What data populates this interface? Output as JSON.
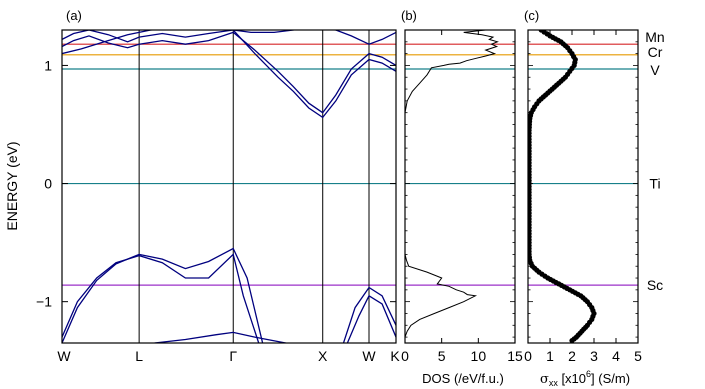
{
  "chart_data": [
    {
      "panel": "(a)",
      "type": "line",
      "ylabel": "ENERGY (eV)",
      "ylim": [
        -1.35,
        1.3
      ],
      "yticks": [
        -1,
        0,
        1
      ],
      "kpoints": [
        "W",
        "L",
        "Γ",
        "X",
        "W",
        "K"
      ],
      "kpositions": [
        0,
        1,
        2.22,
        3.38,
        3.98,
        4.33
      ],
      "series": [
        {
          "x": [
            0,
            0.15,
            0.35,
            0.6,
            0.85,
            1.0,
            1.3,
            1.6,
            1.9,
            2.22,
            2.5,
            2.8,
            3.0,
            3.2,
            3.38,
            3.55,
            3.75,
            3.98,
            4.15,
            4.33
          ],
          "y": [
            1.22,
            1.27,
            1.3,
            1.26,
            1.2,
            1.24,
            1.27,
            1.24,
            1.27,
            1.3,
            1.1,
            0.9,
            0.78,
            0.64,
            0.56,
            0.7,
            0.92,
            1.05,
            1.02,
            0.95
          ]
        },
        {
          "x": [
            0,
            0.15,
            0.35,
            0.6,
            0.85,
            1.0,
            1.3,
            1.6,
            1.9,
            2.22,
            2.5,
            2.8,
            3.0,
            3.2,
            3.38,
            3.55,
            3.75,
            3.98,
            4.15,
            4.33
          ],
          "y": [
            1.16,
            1.21,
            1.25,
            1.19,
            1.15,
            1.18,
            1.21,
            1.18,
            1.21,
            1.28,
            1.13,
            0.95,
            0.82,
            0.68,
            0.6,
            0.75,
            0.97,
            1.1,
            1.07,
            1.0
          ]
        },
        {
          "x": [
            0,
            0.25,
            0.55,
            0.85,
            1.15,
            1.6,
            2.0,
            2.22,
            2.45,
            2.75,
            3.0,
            3.2,
            3.38,
            3.55,
            3.75,
            3.98,
            4.15,
            4.33
          ],
          "y": [
            1.1,
            1.14,
            1.2,
            1.26,
            1.3,
            1.32,
            1.32,
            1.3,
            1.28,
            1.28,
            1.3,
            1.32,
            1.31,
            1.3,
            1.25,
            1.18,
            1.22,
            1.28
          ]
        },
        {
          "x": [
            0,
            0.2,
            0.45,
            0.7,
            1.0,
            1.3,
            1.6,
            1.9,
            2.22,
            2.4,
            2.6
          ],
          "y": [
            -1.35,
            -1.05,
            -0.82,
            -0.68,
            -0.6,
            -0.64,
            -0.72,
            -0.66,
            -0.55,
            -0.8,
            -1.35
          ]
        },
        {
          "x": [
            0,
            0.2,
            0.45,
            0.7,
            1.0,
            1.3,
            1.6,
            1.9,
            2.22,
            2.35,
            2.55
          ],
          "y": [
            -1.3,
            -1.0,
            -0.8,
            -0.67,
            -0.61,
            -0.67,
            -0.8,
            -0.8,
            -0.6,
            -0.95,
            -1.35
          ]
        },
        {
          "x": [
            1.2,
            1.6,
            2.0,
            2.22,
            2.5,
            2.9,
            3.3
          ],
          "y": [
            -1.35,
            -1.32,
            -1.28,
            -1.26,
            -1.3,
            -1.35,
            -1.4
          ]
        },
        {
          "x": [
            3.65,
            3.8,
            3.98,
            4.15,
            4.33
          ],
          "y": [
            -1.35,
            -1.05,
            -0.88,
            -0.95,
            -1.2
          ]
        },
        {
          "x": [
            3.7,
            3.85,
            3.98,
            4.15,
            4.33
          ],
          "y": [
            -1.35,
            -1.12,
            -0.95,
            -1.02,
            -1.3
          ]
        }
      ]
    },
    {
      "panel": "(b)",
      "type": "line",
      "xlabel": "DOS (/eV/f.u.)",
      "xlim": [
        0,
        15
      ],
      "xticks": [
        0,
        5,
        10,
        15
      ],
      "ylim": [
        -1.35,
        1.3
      ],
      "series": [
        {
          "x": [
            0,
            0,
            0.3,
            1,
            2,
            3,
            3.6,
            5.3,
            6,
            7.5,
            8.4,
            9.7,
            11,
            12.2,
            11,
            12.5,
            11.8,
            12.6,
            11.5,
            12,
            10.5,
            8,
            11
          ],
          "y": [
            0.55,
            0.6,
            0.7,
            0.78,
            0.85,
            0.92,
            0.98,
            1.0,
            1.01,
            1.02,
            1.04,
            1.06,
            1.08,
            1.1,
            1.13,
            1.16,
            1.18,
            1.2,
            1.22,
            1.24,
            1.26,
            1.28,
            1.3
          ]
        },
        {
          "x": [
            0,
            0,
            0.2,
            0.5,
            3,
            5,
            4.4,
            6,
            7,
            8,
            8.5,
            9.6,
            8,
            6,
            4,
            2,
            0.8,
            0.3,
            0
          ],
          "y": [
            -0.55,
            -0.6,
            -0.65,
            -0.7,
            -0.75,
            -0.8,
            -0.85,
            -0.87,
            -0.9,
            -0.92,
            -0.94,
            -0.95,
            -1.0,
            -1.05,
            -1.1,
            -1.15,
            -1.2,
            -1.25,
            -1.3
          ]
        }
      ]
    },
    {
      "panel": "(c)",
      "type": "scatter",
      "xlabel": "σxx [x10^6] (S/m)",
      "xlim": [
        0,
        5
      ],
      "xticks": [
        0,
        1,
        2,
        3,
        4,
        5
      ],
      "ylim": [
        -1.35,
        1.3
      ],
      "points": {
        "x": [
          0.6,
          1.0,
          1.5,
          1.8,
          2.0,
          2.15,
          2.1,
          1.9,
          1.7,
          1.4,
          1.1,
          0.8,
          0.5,
          0.3,
          0.15,
          0.08,
          0.05,
          0.05,
          0.05,
          0.05,
          0.05,
          0.05,
          0.05,
          0.05,
          0.05,
          0.05,
          0.08,
          0.2,
          0.5,
          0.9,
          1.4,
          1.9,
          2.4,
          2.7,
          2.9,
          3.0,
          2.9,
          2.7,
          2.45,
          2.2,
          2.0
        ],
        "y": [
          1.3,
          1.25,
          1.2,
          1.15,
          1.1,
          1.05,
          1.0,
          0.95,
          0.9,
          0.85,
          0.8,
          0.75,
          0.7,
          0.65,
          0.6,
          0.55,
          0.45,
          0.3,
          0.15,
          0.0,
          -0.15,
          -0.3,
          -0.4,
          -0.5,
          -0.55,
          -0.6,
          -0.65,
          -0.7,
          -0.75,
          -0.8,
          -0.85,
          -0.9,
          -0.95,
          -1.0,
          -1.05,
          -1.1,
          -1.15,
          -1.2,
          -1.25,
          -1.3,
          -1.33
        ]
      }
    }
  ],
  "levels": [
    {
      "label": "Mn",
      "energy": 1.18,
      "color": "#d62728"
    },
    {
      "label": "Cr",
      "energy": 1.09,
      "color": "#e69a00"
    },
    {
      "label": "V",
      "energy": 0.97,
      "color": "#17808a"
    },
    {
      "label": "Ti",
      "energy": 0.0,
      "color": "#17808a"
    },
    {
      "label": "Sc",
      "energy": -0.86,
      "color": "#9b30c8"
    }
  ],
  "band_color": "#00007f"
}
